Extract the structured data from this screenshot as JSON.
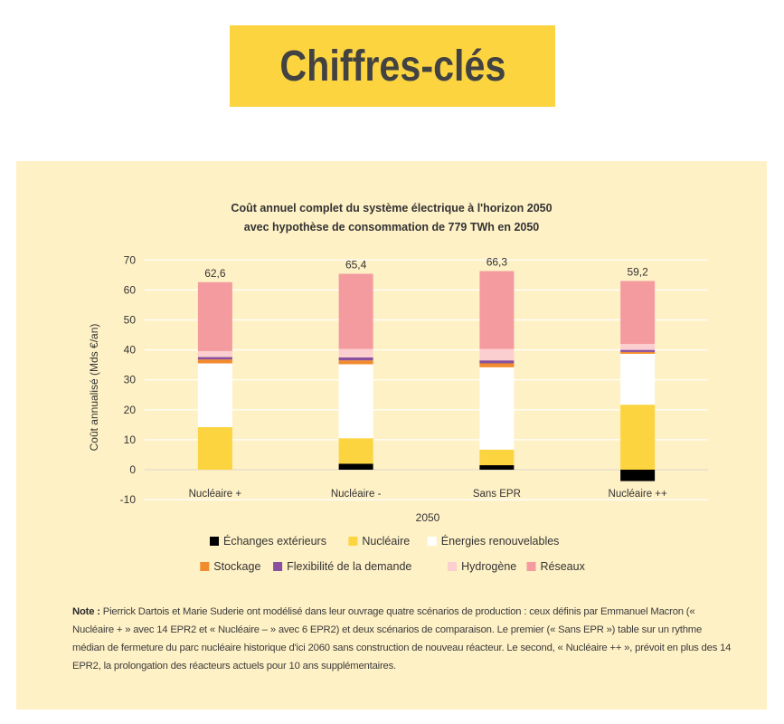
{
  "header": {
    "title": "Chiffres-clés"
  },
  "chart_data": {
    "type": "bar",
    "stacked": true,
    "title_line1": "Coût annuel complet du système électrique à l'horizon 2050",
    "title_line2": "avec hypothèse de consommation de 779 TWh en 2050",
    "ylabel": "Coût annualisé (Mds €/an)",
    "xlabel": "2050",
    "ylim": [
      -10,
      70
    ],
    "yticks": [
      -10,
      0,
      10,
      20,
      30,
      40,
      50,
      60,
      70
    ],
    "grid": true,
    "legend_position": "bottom",
    "categories": [
      "Nucléaire +",
      "Nucléaire -",
      "Sans EPR",
      "Nucléaire ++"
    ],
    "totals": [
      "62,6",
      "65,4",
      "66,3",
      "59,2"
    ],
    "series": [
      {
        "name": "Échanges extérieurs",
        "color": "#000000",
        "values": [
          0,
          2,
          1.5,
          -3.8
        ]
      },
      {
        "name": "Nucléaire",
        "color": "#fcd440",
        "values": [
          14.2,
          8.5,
          5.2,
          21.7
        ]
      },
      {
        "name": "Énergies renouvelables",
        "color": "#ffffff",
        "values": [
          21.3,
          24.7,
          27.5,
          17.0
        ]
      },
      {
        "name": "Stockage",
        "color": "#f28a2e",
        "values": [
          1.3,
          1.3,
          1.3,
          0.6
        ]
      },
      {
        "name": "Flexibilité de la demande",
        "color": "#8a4f9e",
        "values": [
          0.8,
          1.0,
          1.0,
          0.7
        ]
      },
      {
        "name": "Hydrogène",
        "color": "#fbcfcf",
        "values": [
          2.0,
          2.8,
          3.8,
          2.0
        ]
      },
      {
        "name": "Réseaux",
        "color": "#f49ba0",
        "values": [
          23.0,
          25.1,
          26.0,
          21.0
        ]
      }
    ]
  },
  "note": {
    "label": "Note :",
    "text": " Pierrick Dartois et Marie Suderie ont modélisé dans leur ouvrage quatre scénarios de production : ceux définis par Emmanuel Macron (« Nucléaire + » avec 14 EPR2 et « Nucléaire – » avec 6 EPR2) et deux scénarios de comparaison. Le premier (« Sans EPR ») table sur un rythme médian de fermeture du parc nucléaire historique d'ici 2060 sans construction de nouveau réacteur. Le second, « Nucléaire ++ », prévoit en plus des 14 EPR2, la prolongation des réacteurs actuels pour 10 ans supplémentaires."
  }
}
